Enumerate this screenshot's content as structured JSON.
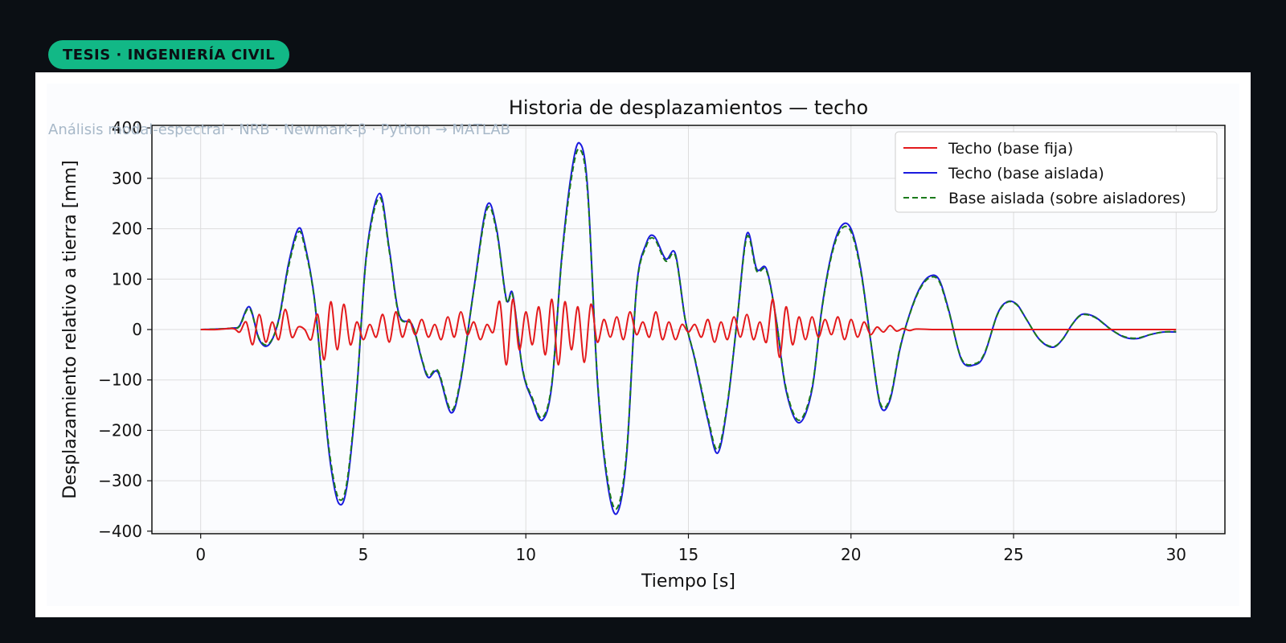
{
  "badge": {
    "label": "TESIS · INGENIERÍA CIVIL"
  },
  "subtitle": "Análisis modal-espectral · NRB · Newmark-β · Python → MATLAB",
  "chart_data": {
    "type": "line",
    "title": "Historia de desplazamientos — techo",
    "xlabel": "Tiempo [s]",
    "ylabel": "Desplazamiento relativo a tierra [mm]",
    "xlim": [
      -1.5,
      31.5
    ],
    "ylim": [
      -405,
      405
    ],
    "xticks": [
      0,
      5,
      10,
      15,
      20,
      25,
      30
    ],
    "yticks": [
      -400,
      -300,
      -200,
      -100,
      0,
      100,
      200,
      300,
      400
    ],
    "xtick_labels": [
      "0",
      "5",
      "10",
      "15",
      "20",
      "25",
      "30"
    ],
    "ytick_labels": [
      "−400",
      "−300",
      "−200",
      "−100",
      "0",
      "100",
      "200",
      "300",
      "400"
    ],
    "grid": true,
    "legend_position": "top-right",
    "series": [
      {
        "name": "Techo (base fija)",
        "color": "#e31a1c",
        "dash": "solid",
        "x": [
          0,
          0.5,
          1.0,
          1.2,
          1.4,
          1.6,
          1.8,
          2.0,
          2.2,
          2.4,
          2.6,
          2.8,
          3.0,
          3.2,
          3.4,
          3.6,
          3.8,
          4.0,
          4.2,
          4.4,
          4.6,
          4.8,
          5.0,
          5.2,
          5.4,
          5.6,
          5.8,
          6.0,
          6.2,
          6.4,
          6.6,
          6.8,
          7.0,
          7.2,
          7.4,
          7.6,
          7.8,
          8.0,
          8.2,
          8.4,
          8.6,
          8.8,
          9.0,
          9.2,
          9.4,
          9.6,
          9.8,
          10.0,
          10.2,
          10.4,
          10.6,
          10.8,
          11.0,
          11.2,
          11.4,
          11.6,
          11.8,
          12.0,
          12.2,
          12.4,
          12.6,
          12.8,
          13.0,
          13.2,
          13.4,
          13.6,
          13.8,
          14.0,
          14.2,
          14.4,
          14.6,
          14.8,
          15.0,
          15.2,
          15.4,
          15.6,
          15.8,
          16.0,
          16.2,
          16.4,
          16.6,
          16.8,
          17.0,
          17.2,
          17.4,
          17.6,
          17.8,
          18.0,
          18.2,
          18.4,
          18.6,
          18.8,
          19.0,
          19.2,
          19.4,
          19.6,
          19.8,
          20.0,
          20.2,
          20.4,
          20.6,
          20.8,
          21.0,
          21.2,
          21.4,
          21.6,
          21.8,
          22.0,
          22.5,
          23,
          23.5,
          24,
          24.5,
          25,
          26,
          27,
          28,
          29,
          30
        ],
        "y": [
          0,
          0,
          2,
          -5,
          15,
          -30,
          30,
          -25,
          15,
          -20,
          40,
          -15,
          5,
          0,
          -20,
          30,
          -60,
          55,
          -40,
          50,
          -30,
          15,
          -20,
          10,
          -15,
          30,
          -25,
          35,
          -15,
          20,
          -10,
          20,
          -15,
          10,
          -20,
          25,
          -15,
          35,
          -10,
          15,
          -20,
          10,
          -5,
          55,
          -70,
          60,
          -40,
          35,
          -30,
          45,
          -50,
          60,
          -70,
          55,
          -40,
          45,
          -65,
          50,
          -25,
          20,
          -15,
          25,
          -20,
          35,
          -10,
          15,
          -15,
          35,
          -20,
          15,
          -20,
          10,
          -5,
          10,
          -15,
          20,
          -25,
          15,
          -20,
          25,
          -15,
          30,
          -20,
          15,
          -25,
          60,
          -55,
          45,
          -30,
          25,
          -20,
          25,
          -15,
          20,
          -10,
          25,
          -20,
          20,
          -15,
          15,
          -10,
          5,
          -5,
          8,
          -3,
          2,
          -2,
          1,
          0,
          0,
          0,
          0,
          0,
          0,
          0,
          0,
          0,
          0,
          0
        ],
        "x_cont_note": "",
        "y_cont_note": ""
      },
      {
        "name": "Techo (base aislada)",
        "color": "#1a1adf",
        "dash": "solid",
        "x": [
          0,
          0.5,
          1.0,
          1.2,
          1.5,
          1.8,
          2.1,
          2.4,
          2.7,
          3.0,
          3.2,
          3.5,
          3.8,
          4.0,
          4.25,
          4.5,
          4.8,
          5.1,
          5.5,
          5.8,
          6.1,
          6.5,
          6.8,
          7.0,
          7.3,
          7.7,
          8.0,
          8.4,
          8.8,
          9.1,
          9.4,
          9.6,
          9.9,
          10.2,
          10.5,
          10.8,
          11.1,
          11.4,
          11.65,
          11.9,
          12.2,
          12.5,
          12.8,
          13.1,
          13.4,
          13.7,
          13.95,
          14.3,
          14.6,
          14.9,
          15.2,
          15.6,
          15.9,
          16.2,
          16.5,
          16.8,
          17.1,
          17.4,
          17.7,
          18.0,
          18.4,
          18.8,
          19.1,
          19.4,
          19.7,
          20.0,
          20.3,
          20.6,
          20.9,
          21.2,
          21.5,
          21.8,
          22.1,
          22.4,
          22.7,
          23.0,
          23.4,
          23.8,
          24.1,
          24.5,
          24.8,
          25.1,
          25.4,
          25.8,
          26.2,
          26.5,
          26.8,
          27.1,
          27.5,
          28.0,
          28.4,
          28.8,
          29.2,
          29.6,
          30.0
        ],
        "y": [
          0,
          1,
          3,
          8,
          45,
          -20,
          -30,
          20,
          130,
          200,
          170,
          60,
          -150,
          -270,
          -345,
          -310,
          -120,
          150,
          270,
          160,
          30,
          10,
          -60,
          -95,
          -85,
          -165,
          -100,
          80,
          245,
          200,
          60,
          70,
          -80,
          -140,
          -180,
          -110,
          140,
          310,
          370,
          280,
          -100,
          -300,
          -365,
          -250,
          80,
          170,
          185,
          140,
          150,
          20,
          -60,
          -180,
          -245,
          -150,
          20,
          190,
          120,
          120,
          20,
          -120,
          -185,
          -120,
          40,
          150,
          205,
          200,
          120,
          -20,
          -150,
          -140,
          -40,
          30,
          80,
          105,
          100,
          40,
          -60,
          -70,
          -50,
          30,
          55,
          50,
          20,
          -20,
          -35,
          -20,
          10,
          30,
          25,
          0,
          -15,
          -18,
          -10,
          -5,
          -5
        ]
      },
      {
        "name": "Base aislada (sobre aisladores)",
        "color": "#1b7a1b",
        "dash": "dashed",
        "x": [
          0,
          0.5,
          1.0,
          1.2,
          1.5,
          1.8,
          2.1,
          2.4,
          2.7,
          3.0,
          3.2,
          3.5,
          3.8,
          4.0,
          4.25,
          4.5,
          4.8,
          5.1,
          5.5,
          5.8,
          6.1,
          6.5,
          6.8,
          7.0,
          7.3,
          7.7,
          8.0,
          8.4,
          8.8,
          9.1,
          9.4,
          9.6,
          9.9,
          10.2,
          10.5,
          10.8,
          11.1,
          11.4,
          11.65,
          11.9,
          12.2,
          12.5,
          12.8,
          13.1,
          13.4,
          13.7,
          13.95,
          14.3,
          14.6,
          14.9,
          15.2,
          15.6,
          15.9,
          16.2,
          16.5,
          16.8,
          17.1,
          17.4,
          17.7,
          18.0,
          18.4,
          18.8,
          19.1,
          19.4,
          19.7,
          20.0,
          20.3,
          20.6,
          20.9,
          21.2,
          21.5,
          21.8,
          22.1,
          22.4,
          22.7,
          23.0,
          23.4,
          23.8,
          24.1,
          24.5,
          24.8,
          25.1,
          25.4,
          25.8,
          26.2,
          26.5,
          26.8,
          27.1,
          27.5,
          28.0,
          28.4,
          28.8,
          29.2,
          29.6,
          30.0
        ],
        "y": [
          0,
          1,
          3,
          7,
          42,
          -18,
          -28,
          18,
          124,
          193,
          164,
          58,
          -144,
          -262,
          -336,
          -302,
          -116,
          146,
          262,
          156,
          28,
          10,
          -58,
          -92,
          -82,
          -160,
          -96,
          78,
          238,
          195,
          58,
          67,
          -78,
          -136,
          -175,
          -106,
          136,
          300,
          358,
          272,
          -96,
          -292,
          -355,
          -243,
          78,
          165,
          180,
          136,
          146,
          20,
          -58,
          -175,
          -238,
          -146,
          20,
          184,
          116,
          117,
          20,
          -116,
          -180,
          -116,
          38,
          146,
          199,
          194,
          116,
          -20,
          -146,
          -136,
          -38,
          29,
          78,
          102,
          97,
          38,
          -58,
          -68,
          -48,
          29,
          54,
          49,
          20,
          -20,
          -34,
          -20,
          10,
          29,
          24,
          0,
          -14,
          -17,
          -10,
          -5,
          -4
        ]
      }
    ]
  }
}
